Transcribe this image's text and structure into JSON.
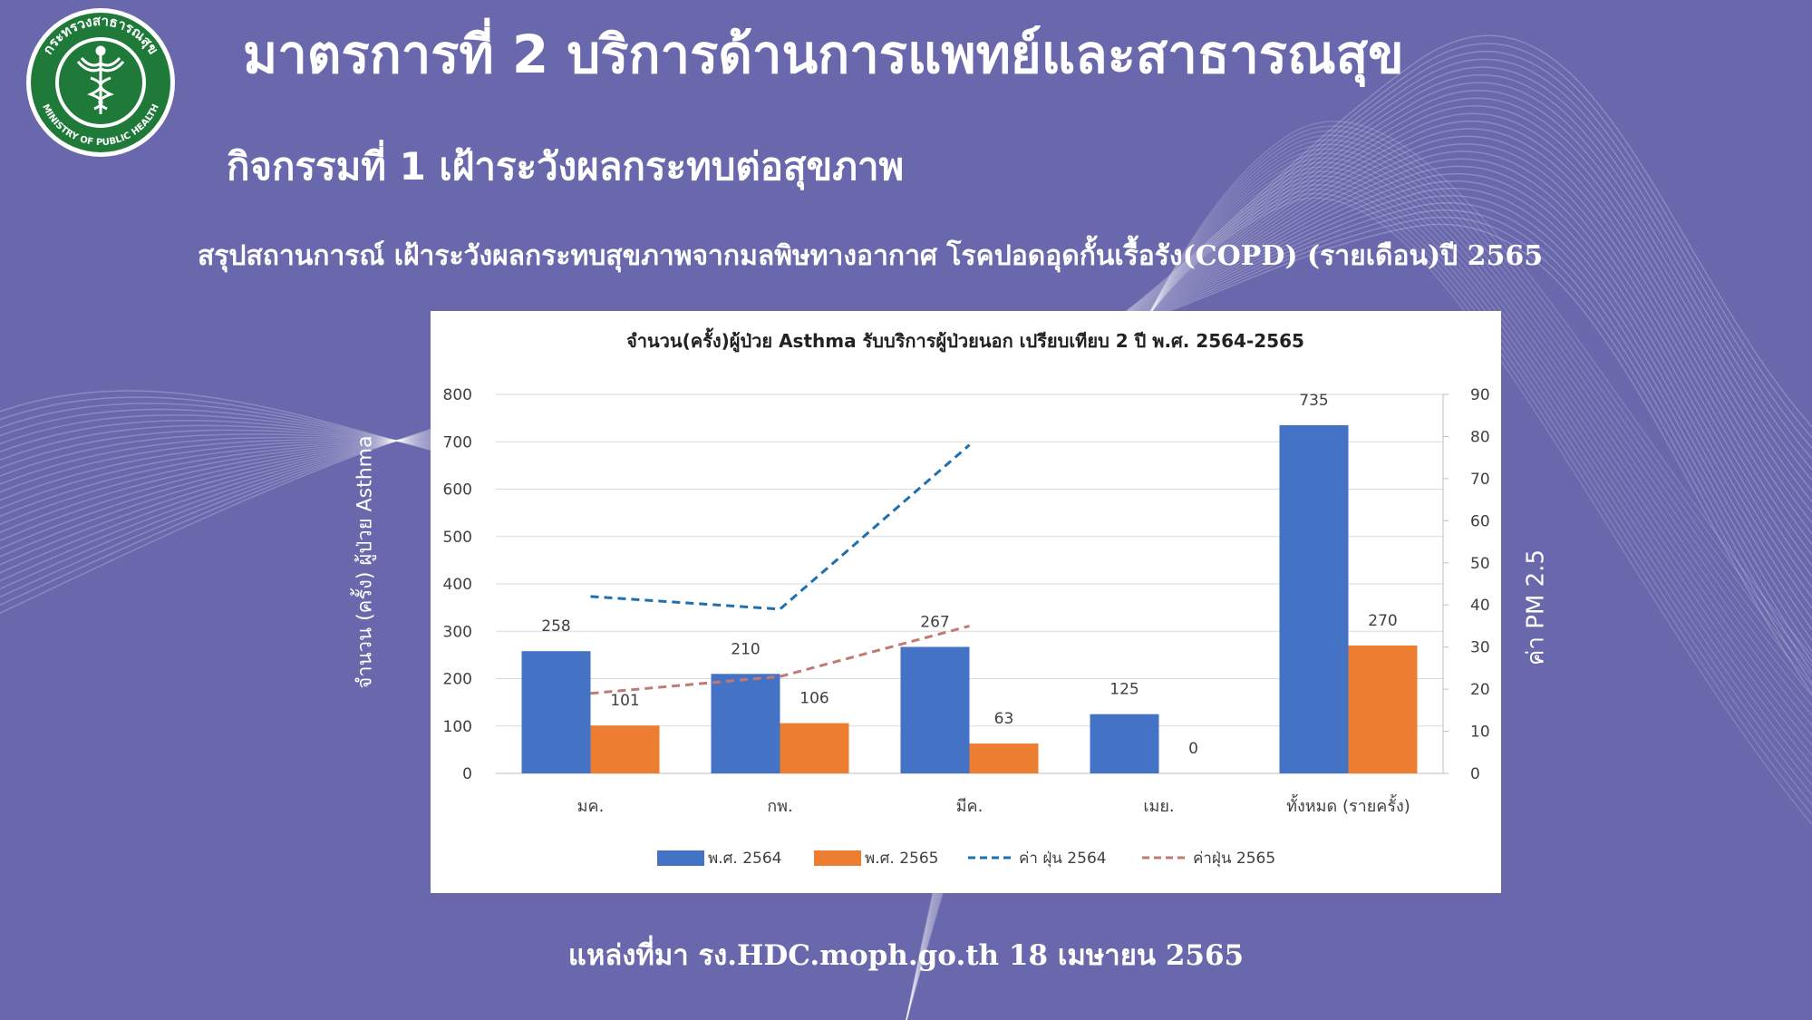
{
  "slide": {
    "title": "มาตรการที่ 2 บริการด้านการแพทย์และสาธารณสุข",
    "subtitle": "กิจกรรมที่ 1 เฝ้าระวังผลกระทบต่อสุขภาพ",
    "summary_title": "สรุปสถานการณ์ เฝ้าระวังผลกระทบสุขภาพจากมลพิษทางอากาศ โรคปอดอุดกั้นเรื้อรัง(COPD) (รายเดือน)ปี 2565",
    "source": "แหล่งที่มา รง.HDC.moph.go.th 18 เมษายน 2565"
  },
  "logo": {
    "ring_text_top": "กระทรวงสาธารณสุข",
    "ring_text_bottom": "MINISTRY OF PUBLIC HEALTH",
    "colors": {
      "green": "#1f7a3a",
      "ring": "#ffffff"
    }
  },
  "chart_data": {
    "type": "bar",
    "title": "จำนวน(ครั้ง)ผู้ป่วย Asthma รับบริการผู้ป่วยนอก เปรียบเทียบ 2 ปี พ.ศ. 2564-2565",
    "ylabel": "จำนวน (ครั้ง) ผู้ป่วย Asthma",
    "y2label": "ค่า PM 2.5",
    "categories": [
      "มค.",
      "กพ.",
      "มีค.",
      "เมย.",
      "ทั้งหมด (รายครั้ง)"
    ],
    "ylim": [
      0,
      800
    ],
    "yticks": [
      0,
      100,
      200,
      300,
      400,
      500,
      600,
      700,
      800
    ],
    "y2lim": [
      0,
      90
    ],
    "y2ticks": [
      0,
      10,
      20,
      30,
      40,
      50,
      60,
      70,
      80,
      90
    ],
    "grid": true,
    "legend_position": "bottom",
    "series": [
      {
        "name": "พ.ศ. 2564",
        "kind": "bar",
        "axis": "left",
        "color": "#4472c4",
        "values": [
          258,
          210,
          267,
          125,
          735
        ],
        "labels": [
          "258",
          "210",
          "267",
          "125",
          "735"
        ]
      },
      {
        "name": "พ.ศ. 2565",
        "kind": "bar",
        "axis": "left",
        "color": "#ed7d31",
        "values": [
          101,
          106,
          63,
          0,
          270
        ],
        "labels": [
          "101",
          "106",
          "63",
          "0",
          "270"
        ]
      },
      {
        "name": "ค่า ฝุ่น 2564",
        "kind": "line",
        "style": "dashed",
        "axis": "right",
        "color": "#1f6fae",
        "values": [
          42,
          39,
          78,
          null,
          null
        ]
      },
      {
        "name": "ค่าฝุ่น 2565",
        "kind": "line",
        "style": "dashed",
        "axis": "right",
        "color": "#c07a74",
        "values": [
          19,
          23,
          35,
          null,
          null
        ]
      }
    ]
  }
}
